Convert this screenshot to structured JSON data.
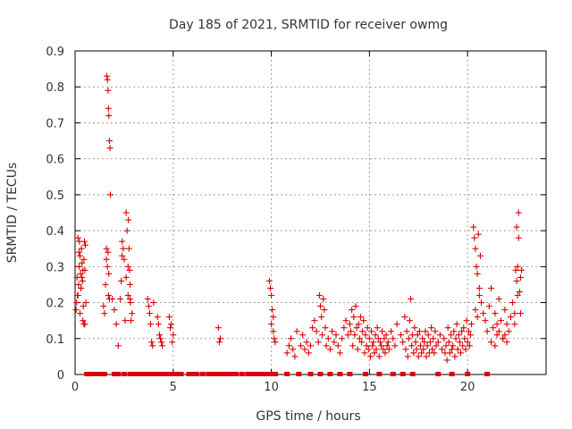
{
  "chart_data": {
    "type": "scatter",
    "title": "Day 185 of 2021, SRMTID for receiver owmg",
    "xlabel": "GPS time / hours",
    "ylabel": "SRMTID / TECUs",
    "xlim": [
      0,
      24
    ],
    "ylim": [
      0,
      0.9
    ],
    "xticks": [
      0,
      5,
      10,
      15,
      20
    ],
    "yticks": [
      0,
      0.1,
      0.2,
      0.3,
      0.4,
      0.5,
      0.6,
      0.7,
      0.8,
      0.9
    ],
    "xtick_labels": [
      "0",
      "5",
      "10",
      "15",
      "20"
    ],
    "ytick_labels": [
      "0",
      "0.1",
      "0.2",
      "0.3",
      "0.4",
      "0.5",
      "0.6",
      "0.7",
      "0.8",
      "0.9"
    ],
    "grid": true,
    "marker": "+",
    "color": "#dd0000",
    "series": [
      {
        "name": "SRMTID",
        "x": [
          0.05,
          0.08,
          0.1,
          0.12,
          0.15,
          0.18,
          0.2,
          0.22,
          0.25,
          0.28,
          0.3,
          0.32,
          0.35,
          0.38,
          0.4,
          0.42,
          0.45,
          0.48,
          0.5,
          0.52,
          0.15,
          0.25,
          0.35,
          0.45,
          0.55,
          0.2,
          0.3,
          0.4,
          0.5,
          1.45,
          1.5,
          1.55,
          1.6,
          1.62,
          1.65,
          1.68,
          1.7,
          1.72,
          1.75,
          1.78,
          1.8,
          1.65,
          1.7,
          1.6,
          1.75,
          1.68,
          1.72,
          1.9,
          2.0,
          2.1,
          2.2,
          2.3,
          2.35,
          2.4,
          2.45,
          2.5,
          2.55,
          2.6,
          2.65,
          2.7,
          2.72,
          2.75,
          2.78,
          2.8,
          2.82,
          2.85,
          2.9,
          2.6,
          2.7,
          2.8,
          2.4,
          3.7,
          3.75,
          3.8,
          3.85,
          3.9,
          3.95,
          4.0,
          4.2,
          4.25,
          4.3,
          4.35,
          4.4,
          4.45,
          4.8,
          4.85,
          4.9,
          4.95,
          5.0,
          7.3,
          7.35,
          7.4,
          9.9,
          9.95,
          10.0,
          10.05,
          10.1,
          10.15,
          10.2,
          10.0,
          10.1,
          10.8,
          10.9,
          11.0,
          11.1,
          11.2,
          11.3,
          11.5,
          11.6,
          11.7,
          11.8,
          11.9,
          12.0,
          12.1,
          12.2,
          12.3,
          12.4,
          12.45,
          12.5,
          12.55,
          12.6,
          12.65,
          12.7,
          12.75,
          12.8,
          12.9,
          13.0,
          13.1,
          13.2,
          13.3,
          13.4,
          13.5,
          13.6,
          13.7,
          13.8,
          13.9,
          14.0,
          14.05,
          14.1,
          14.15,
          14.2,
          14.25,
          14.3,
          14.35,
          14.4,
          14.45,
          14.5,
          14.55,
          14.6,
          14.65,
          14.7,
          14.75,
          14.8,
          14.85,
          14.9,
          14.95,
          15.0,
          15.05,
          15.1,
          15.15,
          15.2,
          15.25,
          15.3,
          15.35,
          15.4,
          15.45,
          15.5,
          15.55,
          15.6,
          15.65,
          15.7,
          15.75,
          15.8,
          15.85,
          15.9,
          15.95,
          16.0,
          16.1,
          16.2,
          16.3,
          16.4,
          16.6,
          16.7,
          16.8,
          16.85,
          16.9,
          16.95,
          17.0,
          17.05,
          17.1,
          17.15,
          17.2,
          17.25,
          17.3,
          17.35,
          17.4,
          17.45,
          17.5,
          17.55,
          17.6,
          17.65,
          17.7,
          17.75,
          17.8,
          17.85,
          17.9,
          17.95,
          18.0,
          18.05,
          18.1,
          18.15,
          18.2,
          18.25,
          18.3,
          18.35,
          18.4,
          18.5,
          18.6,
          18.7,
          18.8,
          18.85,
          18.9,
          18.95,
          19.0,
          19.05,
          19.1,
          19.15,
          19.2,
          19.25,
          19.3,
          19.35,
          19.4,
          19.45,
          19.5,
          19.55,
          19.6,
          19.65,
          19.7,
          19.75,
          19.8,
          19.85,
          19.9,
          19.95,
          20.0,
          20.05,
          20.1,
          20.15,
          20.2,
          20.3,
          20.35,
          20.4,
          20.45,
          20.5,
          20.55,
          20.6,
          20.65,
          20.7,
          20.4,
          20.5,
          20.6,
          20.8,
          20.9,
          21.0,
          21.1,
          21.2,
          21.3,
          21.4,
          21.5,
          21.6,
          21.7,
          21.8,
          21.9,
          22.0,
          22.1,
          22.2,
          22.3,
          22.4,
          22.45,
          22.5,
          22.55,
          22.6,
          22.65,
          22.7,
          22.75,
          22.5,
          22.6,
          22.4,
          22.7,
          22.55,
          21.2,
          21.4,
          21.6,
          21.8,
          22.0,
          21.5,
          21.9
        ],
        "y": [
          0.18,
          0.2,
          0.27,
          0.22,
          0.38,
          0.25,
          0.3,
          0.37,
          0.33,
          0.28,
          0.24,
          0.35,
          0.31,
          0.26,
          0.15,
          0.19,
          0.14,
          0.37,
          0.29,
          0.36,
          0.22,
          0.17,
          0.27,
          0.32,
          0.2,
          0.34,
          0.24,
          0.29,
          0.14,
          0.19,
          0.17,
          0.25,
          0.35,
          0.83,
          0.82,
          0.79,
          0.74,
          0.72,
          0.65,
          0.63,
          0.5,
          0.3,
          0.22,
          0.32,
          0.21,
          0.34,
          0.28,
          0.21,
          0.18,
          0.14,
          0.08,
          0.21,
          0.26,
          0.37,
          0.35,
          0.32,
          0.15,
          0.45,
          0.4,
          0.22,
          0.43,
          0.35,
          0.29,
          0.21,
          0.2,
          0.15,
          0.17,
          0.27,
          0.3,
          0.25,
          0.33,
          0.21,
          0.19,
          0.17,
          0.14,
          0.09,
          0.08,
          0.2,
          0.16,
          0.14,
          0.11,
          0.1,
          0.09,
          0.08,
          0.16,
          0.13,
          0.14,
          0.09,
          0.11,
          0.13,
          0.09,
          0.1,
          0.26,
          0.24,
          0.22,
          0.18,
          0.12,
          0.1,
          0.09,
          0.14,
          0.16,
          0.06,
          0.08,
          0.1,
          0.07,
          0.05,
          0.12,
          0.08,
          0.11,
          0.07,
          0.09,
          0.06,
          0.08,
          0.13,
          0.15,
          0.12,
          0.09,
          0.22,
          0.19,
          0.16,
          0.11,
          0.21,
          0.18,
          0.13,
          0.08,
          0.1,
          0.07,
          0.12,
          0.09,
          0.11,
          0.08,
          0.06,
          0.1,
          0.13,
          0.15,
          0.11,
          0.14,
          0.12,
          0.18,
          0.08,
          0.16,
          0.11,
          0.19,
          0.13,
          0.07,
          0.14,
          0.1,
          0.16,
          0.09,
          0.12,
          0.15,
          0.06,
          0.11,
          0.08,
          0.13,
          0.07,
          0.1,
          0.05,
          0.12,
          0.08,
          0.09,
          0.06,
          0.11,
          0.07,
          0.13,
          0.1,
          0.05,
          0.09,
          0.08,
          0.12,
          0.07,
          0.1,
          0.06,
          0.11,
          0.08,
          0.09,
          0.07,
          0.12,
          0.1,
          0.08,
          0.14,
          0.11,
          0.09,
          0.16,
          0.07,
          0.12,
          0.05,
          0.1,
          0.15,
          0.21,
          0.08,
          0.11,
          0.06,
          0.13,
          0.09,
          0.07,
          0.11,
          0.05,
          0.12,
          0.08,
          0.06,
          0.1,
          0.07,
          0.09,
          0.12,
          0.05,
          0.08,
          0.11,
          0.06,
          0.09,
          0.13,
          0.07,
          0.1,
          0.06,
          0.12,
          0.08,
          0.09,
          0.11,
          0.07,
          0.1,
          0.06,
          0.08,
          0.04,
          0.13,
          0.09,
          0.06,
          0.11,
          0.07,
          0.08,
          0.12,
          0.05,
          0.1,
          0.14,
          0.07,
          0.11,
          0.09,
          0.06,
          0.12,
          0.08,
          0.13,
          0.1,
          0.07,
          0.15,
          0.09,
          0.12,
          0.08,
          0.11,
          0.14,
          0.41,
          0.38,
          0.35,
          0.3,
          0.28,
          0.39,
          0.24,
          0.33,
          0.2,
          0.18,
          0.16,
          0.22,
          0.17,
          0.15,
          0.12,
          0.19,
          0.24,
          0.13,
          0.17,
          0.11,
          0.21,
          0.15,
          0.1,
          0.18,
          0.14,
          0.12,
          0.16,
          0.2,
          0.17,
          0.29,
          0.26,
          0.3,
          0.45,
          0.23,
          0.27,
          0.29,
          0.41,
          0.38,
          0.14,
          0.17,
          0.22,
          0.09,
          0.08,
          0.12,
          0.1,
          0.09,
          0.14,
          0.11
        ],
        "zero_band": {
          "y": 0,
          "x": [
            0.6,
            0.7,
            0.8,
            0.9,
            1.0,
            1.1,
            1.2,
            1.3,
            1.4,
            1.5,
            2.0,
            2.2,
            2.5,
            2.8,
            3.0,
            3.2,
            3.4,
            3.6,
            3.8,
            4.0,
            4.2,
            4.4,
            4.6,
            4.8,
            5.0,
            5.2,
            5.4,
            5.8,
            6.0,
            6.2,
            6.5,
            6.8,
            7.0,
            7.2,
            7.4,
            7.6,
            7.8,
            8.0,
            8.2,
            8.5,
            8.8,
            9.0,
            9.2,
            9.4,
            9.6,
            9.8,
            10.0,
            10.2,
            10.8,
            11.4,
            12.0,
            12.5,
            13.0,
            13.5,
            14.0,
            14.8,
            15.5,
            16.2,
            16.7,
            17.2,
            18.5,
            19.2,
            20.0,
            21.0
          ]
        }
      }
    ]
  }
}
